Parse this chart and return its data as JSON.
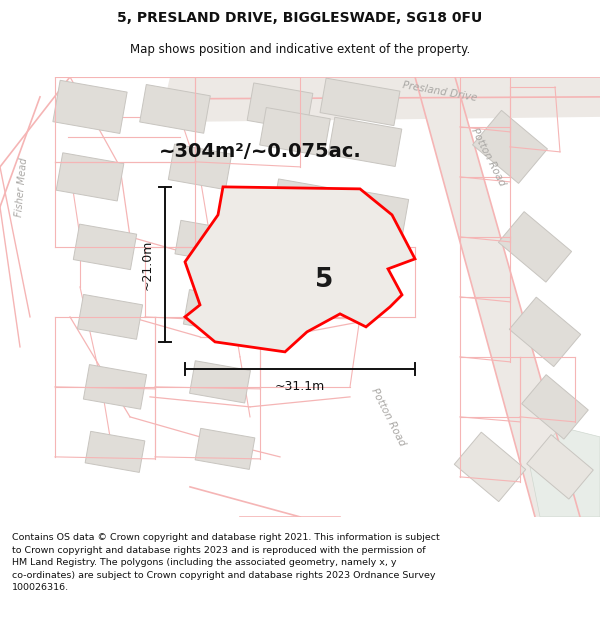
{
  "title_line1": "5, PRESLAND DRIVE, BIGGLESWADE, SG18 0FU",
  "title_line2": "Map shows position and indicative extent of the property.",
  "area_text": "~304m²/~0.075ac.",
  "width_label": "~31.1m",
  "height_label": "~21.0m",
  "plot_number": "5",
  "footer_text": "Contains OS data © Crown copyright and database right 2021. This information is subject to Crown copyright and database rights 2023 and is reproduced with the permission of HM Land Registry. The polygons (including the associated geometry, namely x, y co-ordinates) are subject to Crown copyright and database rights 2023 Ordnance Survey 100026316.",
  "map_bg": "#f0eeeb",
  "road_color": "#f5b5b5",
  "road_fill": "#ede8e4",
  "building_fill": "#e0ddd8",
  "building_edge": "#c8c5c0",
  "plot_outline_color": "red",
  "dim_line_color": "#111111",
  "road_label_color": "#aaa8a5",
  "title_color": "#111111",
  "footer_color": "#111111",
  "white_bg": "#ffffff",
  "figsize": [
    6.0,
    6.25
  ],
  "dpi": 100
}
